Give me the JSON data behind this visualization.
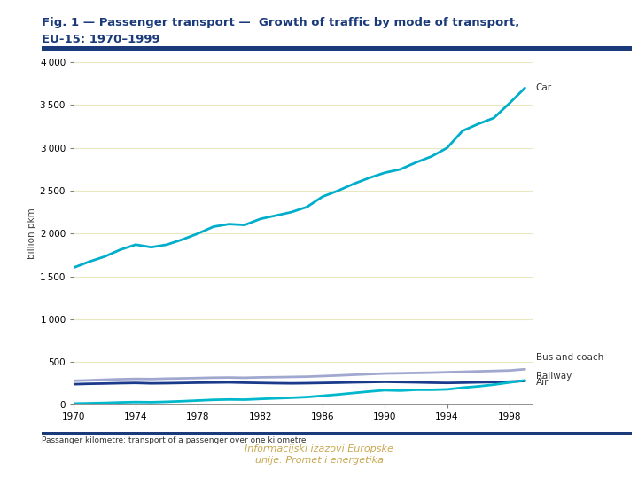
{
  "title_line1": "Fig. 1 — Passenger transport —  Growth of traffic by mode of transport,",
  "title_line2": "EU-15: 1970–1999",
  "ylabel": "billion pkm",
  "footnote": "Passanger kilometre: transport of a passenger over one kilometre",
  "footer_line1": "Informacijski izazovi Europske",
  "footer_line2": "unije: Promet i energetika",
  "years": [
    1970,
    1971,
    1972,
    1973,
    1974,
    1975,
    1976,
    1977,
    1978,
    1979,
    1980,
    1981,
    1982,
    1983,
    1984,
    1985,
    1986,
    1987,
    1988,
    1989,
    1990,
    1991,
    1992,
    1993,
    1994,
    1995,
    1996,
    1997,
    1998,
    1999
  ],
  "car": [
    1600,
    1670,
    1730,
    1810,
    1870,
    1840,
    1870,
    1930,
    2000,
    2080,
    2110,
    2100,
    2170,
    2210,
    2250,
    2310,
    2430,
    2500,
    2580,
    2650,
    2710,
    2750,
    2830,
    2900,
    3000,
    3200,
    3280,
    3350,
    3520,
    3700
  ],
  "bus": [
    280,
    285,
    292,
    298,
    302,
    300,
    305,
    308,
    312,
    316,
    318,
    315,
    320,
    322,
    325,
    328,
    335,
    342,
    350,
    358,
    365,
    368,
    372,
    375,
    380,
    385,
    390,
    395,
    400,
    415
  ],
  "railway": [
    240,
    245,
    248,
    252,
    255,
    250,
    252,
    255,
    258,
    260,
    262,
    258,
    255,
    252,
    250,
    252,
    255,
    258,
    262,
    265,
    268,
    265,
    262,
    258,
    255,
    258,
    262,
    265,
    270,
    278
  ],
  "air": [
    15,
    18,
    22,
    28,
    32,
    30,
    35,
    42,
    50,
    58,
    62,
    60,
    68,
    75,
    82,
    90,
    105,
    120,
    138,
    155,
    170,
    165,
    175,
    175,
    180,
    200,
    215,
    235,
    260,
    285
  ],
  "car_color": "#00AECC",
  "bus_color": "#A0A8D0",
  "railway_color": "#1A3A8C",
  "air_color": "#00B8CC",
  "bg_color": "#FFFFFF",
  "plot_bg": "#FFFFFF",
  "grid_color": "#E8E8C0",
  "title_color": "#1A3A7A",
  "footer_color": "#C8A850",
  "ylim": [
    0,
    4000
  ],
  "yticks": [
    0,
    500,
    1000,
    1500,
    2000,
    2500,
    3000,
    3500,
    4000
  ],
  "xticks": [
    1970,
    1974,
    1978,
    1982,
    1986,
    1990,
    1994,
    1998
  ]
}
